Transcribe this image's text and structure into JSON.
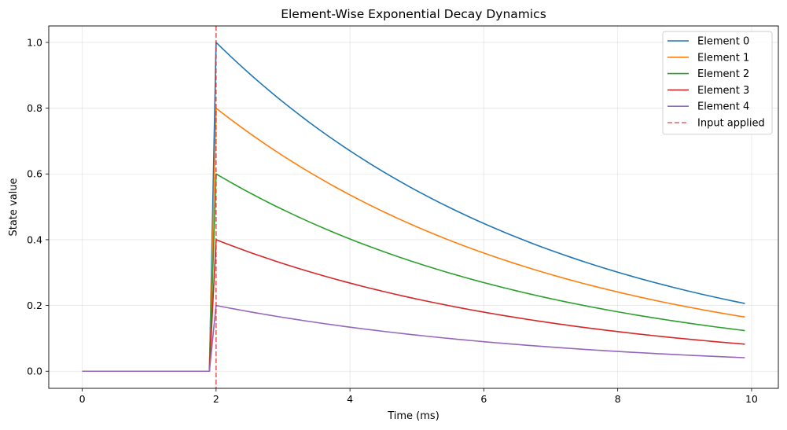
{
  "chart_data": {
    "type": "line",
    "title": "Element-Wise Exponential Decay Dynamics",
    "xlabel": "Time (ms)",
    "ylabel": "State value",
    "xlim": [
      -0.5,
      10.4
    ],
    "ylim": [
      -0.052,
      1.05
    ],
    "xticks": [
      0,
      2,
      4,
      6,
      8,
      10
    ],
    "yticks": [
      0.0,
      0.2,
      0.4,
      0.6,
      0.8,
      1.0
    ],
    "xtick_labels": [
      "0",
      "2",
      "4",
      "6",
      "8",
      "10"
    ],
    "ytick_labels": [
      "0.0",
      "0.2",
      "0.4",
      "0.6",
      "0.8",
      "1.0"
    ],
    "grid": true,
    "legend_position": "top-right",
    "time": {
      "start": 0.0,
      "stop": 9.9,
      "step": 0.1,
      "input_time": 2.0,
      "decay_tau_ms": 5.0
    },
    "series": [
      {
        "name": "Element 0",
        "color": "#1f77b4",
        "peak": 1.0
      },
      {
        "name": "Element 1",
        "color": "#ff7f0e",
        "peak": 0.8
      },
      {
        "name": "Element 2",
        "color": "#2ca02c",
        "peak": 0.6
      },
      {
        "name": "Element 3",
        "color": "#d62728",
        "peak": 0.4
      },
      {
        "name": "Element 4",
        "color": "#9467bd",
        "peak": 0.2
      }
    ],
    "vline": {
      "name": "Input applied",
      "x": 2.0,
      "color": "#d62728",
      "style": "dashed"
    }
  }
}
